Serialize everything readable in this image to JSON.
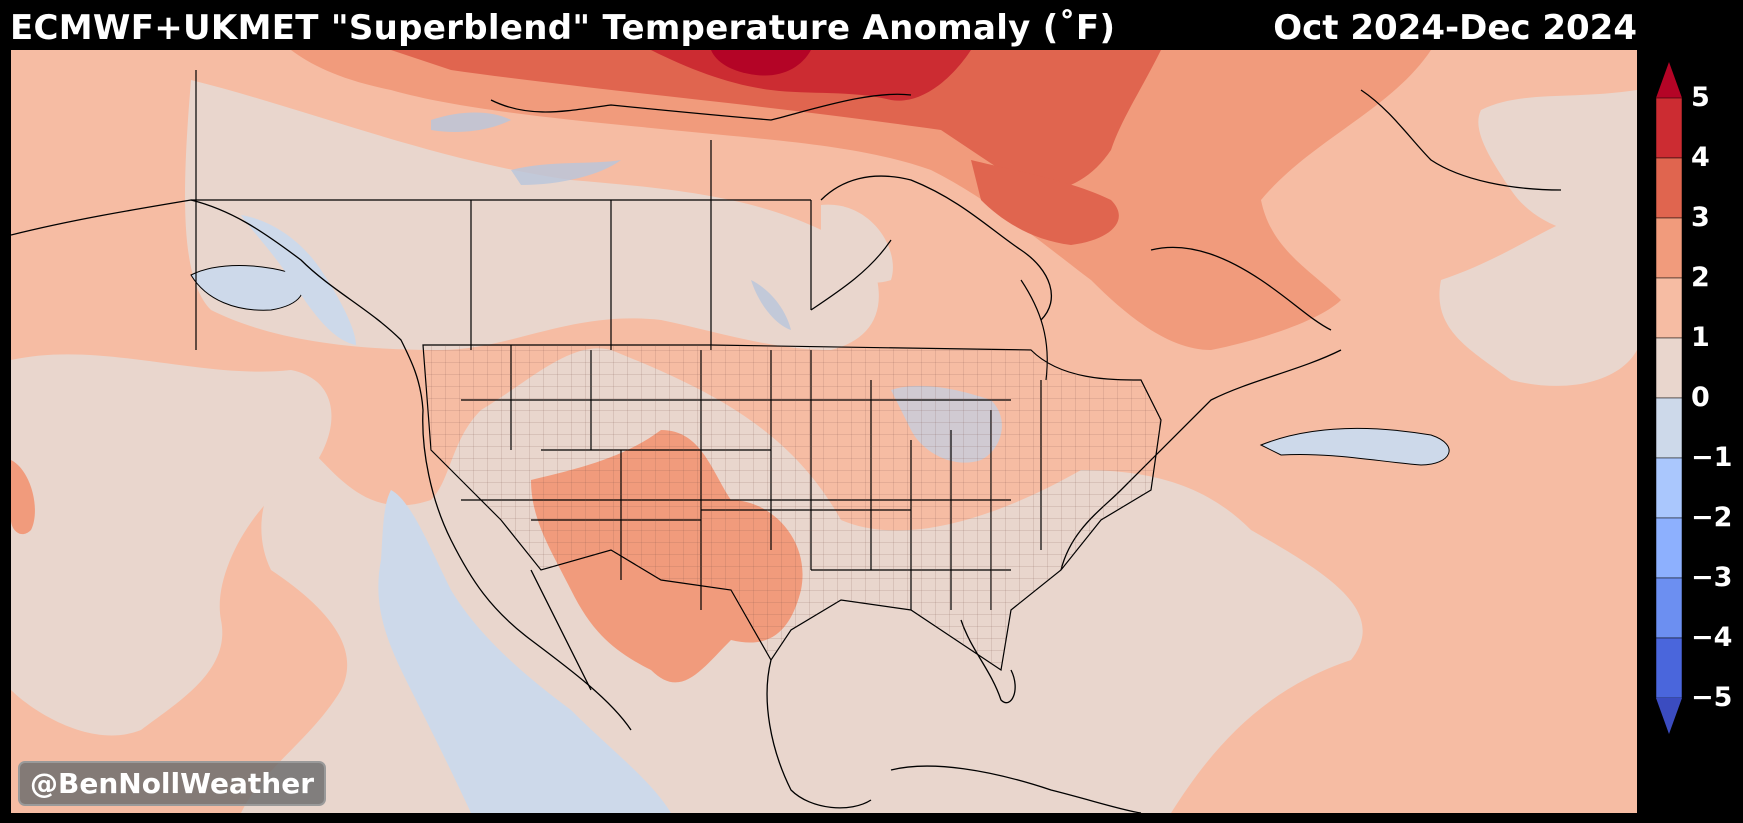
{
  "header": {
    "title": "ECMWF+UKMET \"Superblend\" Temperature Anomaly (˚F)",
    "period": "Oct 2024-Dec 2024"
  },
  "watermark": "@BenNollWeather",
  "colorbar": {
    "ticks": [
      "5",
      "4",
      "3",
      "2",
      "1",
      "0",
      "−1",
      "−2",
      "−3",
      "−4",
      "−5"
    ],
    "colors": [
      "#b40426",
      "#cc2c32",
      "#e0654f",
      "#f19b7c",
      "#f6bca3",
      "#e9d6cd",
      "#cdd9ea",
      "#aac7fd",
      "#8db0fe",
      "#6c8ff1",
      "#4a66dc",
      "#3b4cc0"
    ]
  }
}
